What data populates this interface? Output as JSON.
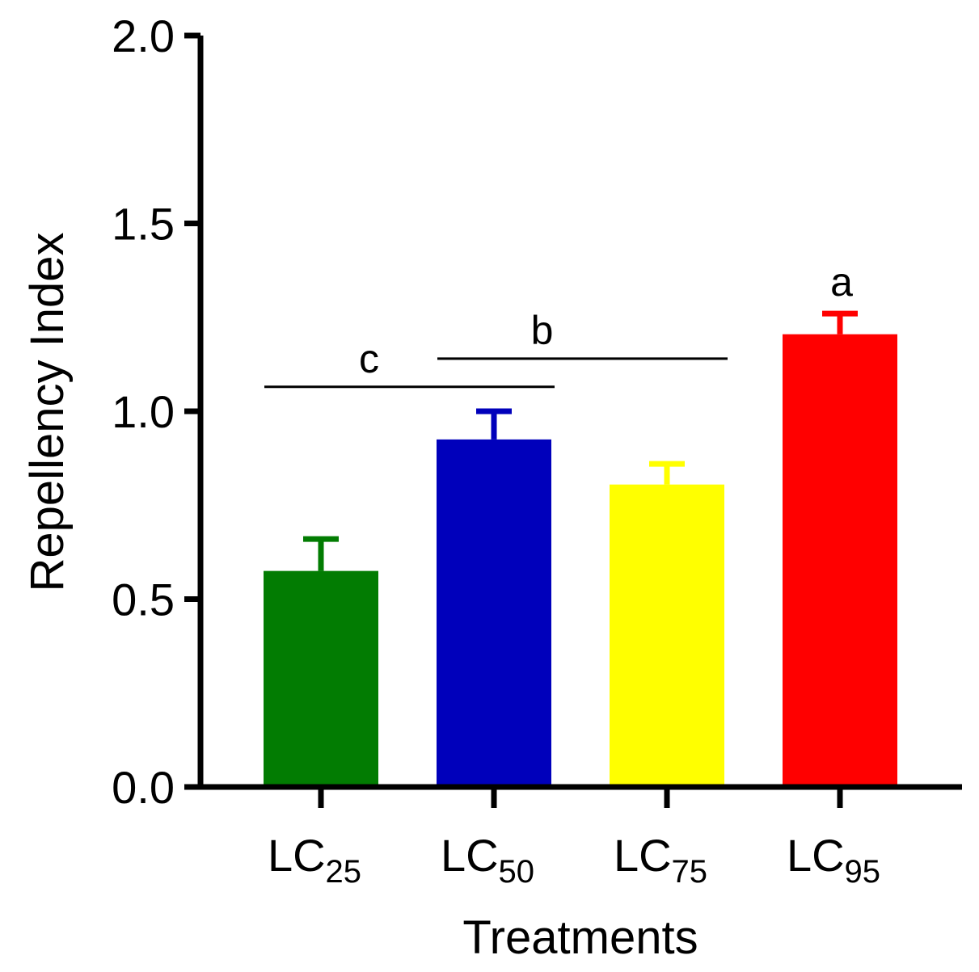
{
  "chart_data": {
    "type": "bar",
    "xlabel": "Treatments",
    "ylabel": "Repellency Index",
    "ylim": [
      0,
      2.0
    ],
    "yticks": [
      0.0,
      0.5,
      1.0,
      1.5,
      2.0
    ],
    "ytick_labels": [
      "0.0",
      "0.5",
      "1.0",
      "1.5",
      "2.0"
    ],
    "categories": [
      {
        "base": "LC",
        "sub": "25",
        "value": 0.575,
        "error": 0.085,
        "color": "#027c02"
      },
      {
        "base": "LC",
        "sub": "50",
        "value": 0.925,
        "error": 0.075,
        "color": "#0000bb"
      },
      {
        "base": "LC",
        "sub": "75",
        "value": 0.805,
        "error": 0.055,
        "color": "#ffff00"
      },
      {
        "base": "LC",
        "sub": "95",
        "value": 1.205,
        "error": 0.055,
        "color": "#ff0000"
      }
    ],
    "significance": [
      {
        "letter": "c",
        "from": 0,
        "to": 1,
        "y": 1.065
      },
      {
        "letter": "b",
        "from": 1,
        "to": 2,
        "y": 1.14
      },
      {
        "letter": "a",
        "from": 3,
        "to": 3,
        "y": null
      }
    ]
  }
}
